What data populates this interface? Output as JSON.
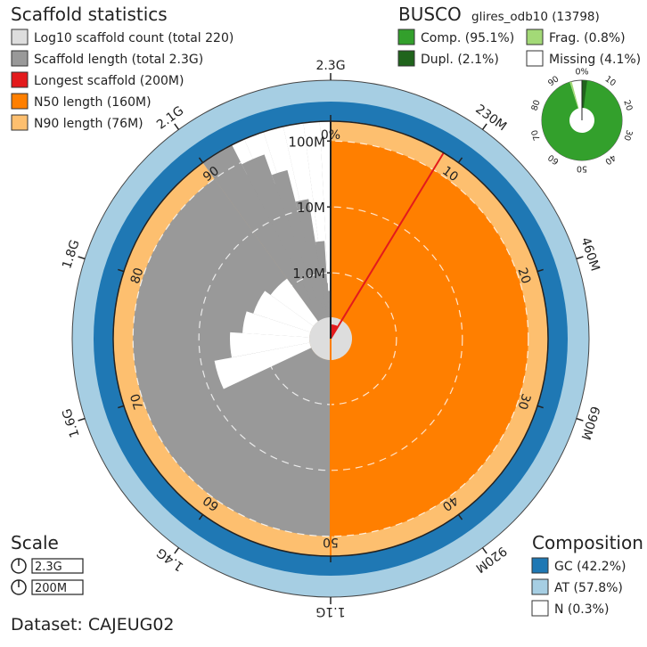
{
  "chart_data": {
    "type": "snail",
    "dataset_label": "Dataset: CAJEUG02",
    "scaffold_stats": {
      "title": "Scaffold statistics",
      "legend": [
        {
          "key": "count",
          "label": "Log10 scaffold count (total 220)",
          "color": "#dddddd"
        },
        {
          "key": "length",
          "label": "Scaffold length (total 2.3G)",
          "color": "#999999"
        },
        {
          "key": "longest",
          "label": "Longest scaffold (200M)",
          "color": "#e31a1c"
        },
        {
          "key": "n50",
          "label": "N50 length (160M)",
          "color": "#ff7f00"
        },
        {
          "key": "n90",
          "label": "N90 length (76M)",
          "color": "#fdbf6f"
        }
      ],
      "total_length_bp": 2300000000,
      "longest_bp": 200000000,
      "n50_bp": 160000000,
      "n90_bp": 76000000,
      "n50_percent": 50,
      "n90_percent": 90,
      "length_scale_labels": [
        "1.0M",
        "10M",
        "100M"
      ],
      "length_scale_values": [
        1000000,
        10000000,
        100000000
      ],
      "percent_ticks": [
        "0%",
        "10",
        "20",
        "30",
        "40",
        "50",
        "60",
        "70",
        "80",
        "90"
      ],
      "length_ticks": [
        {
          "label": "230M",
          "percent": 10
        },
        {
          "label": "460M",
          "percent": 20
        },
        {
          "label": "690M",
          "percent": 30
        },
        {
          "label": "920M",
          "percent": 40
        },
        {
          "label": "1.1G",
          "percent": 50
        },
        {
          "label": "1.4G",
          "percent": 60
        },
        {
          "label": "1.6G",
          "percent": 70
        },
        {
          "label": "1.8G",
          "percent": 80
        },
        {
          "label": "2.1G",
          "percent": 90
        },
        {
          "label": "2.3G",
          "percent": 100
        }
      ],
      "length_profile_percent": [
        0,
        6,
        10,
        14,
        17,
        20,
        23,
        26,
        29,
        32,
        35,
        37,
        38.5,
        40,
        41,
        42,
        43,
        44
      ],
      "length_profile_bp": [
        200000000,
        195000000,
        190000000,
        185000000,
        178000000,
        172000000,
        165000000,
        155000000,
        145000000,
        135000000,
        125000000,
        112000000,
        100000000,
        85000000,
        70000000,
        50000000,
        25000000,
        5000000
      ]
    },
    "busco": {
      "title": "BUSCO",
      "lineage": "glires_odb10 (13798)",
      "legend": [
        {
          "key": "comp",
          "label": "Comp. (95.1%)",
          "color": "#33a02c",
          "percent": 95.1
        },
        {
          "key": "frag",
          "label": "Frag. (0.8%)",
          "color": "#a3d977",
          "percent": 0.8
        },
        {
          "key": "dupl",
          "label": "Dupl. (2.1%)",
          "color": "#20641c",
          "percent": 2.1
        },
        {
          "key": "missing",
          "label": "Missing (4.1%)",
          "color": "#ffffff",
          "percent": 4.1
        }
      ],
      "ticks": [
        "0%",
        "10",
        "20",
        "30",
        "40",
        "50",
        "60",
        "70",
        "80",
        "90"
      ]
    },
    "composition": {
      "title": "Composition",
      "legend": [
        {
          "key": "gc",
          "label": "GC (42.2%)",
          "color": "#1f78b4",
          "percent": 42.2
        },
        {
          "key": "at",
          "label": "AT (57.8%)",
          "color": "#a6cee3",
          "percent": 57.8
        },
        {
          "key": "n",
          "label": "N (0.3%)",
          "color": "#ffffff",
          "percent": 0.3
        }
      ]
    },
    "scale": {
      "title": "Scale",
      "items": [
        "2.3G",
        "200M"
      ]
    }
  }
}
